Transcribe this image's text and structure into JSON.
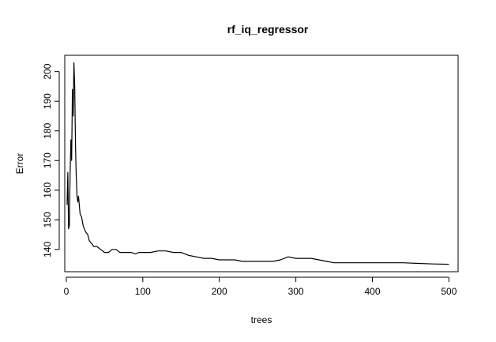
{
  "chart_data": {
    "type": "line",
    "title": "rf_iq_regressor",
    "xlabel": "trees",
    "ylabel": "Error",
    "xlim": [
      -2,
      512
    ],
    "ylim": [
      132.5,
      205.5
    ],
    "xticks": [
      0,
      100,
      200,
      300,
      400,
      500
    ],
    "yticks": [
      140,
      150,
      160,
      170,
      180,
      190,
      200
    ],
    "grid": false,
    "series": [
      {
        "color": "#000000",
        "x": [
          1,
          2,
          3,
          4,
          5,
          6,
          7,
          8,
          9,
          10,
          11,
          12,
          13,
          14,
          15,
          16,
          18,
          20,
          22,
          25,
          28,
          30,
          33,
          36,
          40,
          45,
          50,
          55,
          60,
          65,
          70,
          75,
          80,
          85,
          90,
          95,
          100,
          110,
          120,
          130,
          140,
          150,
          160,
          170,
          180,
          190,
          200,
          210,
          220,
          230,
          240,
          250,
          260,
          270,
          280,
          290,
          300,
          310,
          320,
          330,
          340,
          350,
          360,
          370,
          380,
          390,
          400,
          420,
          440,
          460,
          480,
          500
        ],
        "values": [
          155,
          166,
          147,
          148,
          166,
          177,
          170,
          194,
          185,
          203,
          195,
          175,
          165,
          158,
          156,
          158,
          152,
          151,
          148,
          146,
          145,
          143,
          142,
          141,
          141,
          140,
          139,
          139,
          140,
          140,
          139,
          139,
          139,
          139,
          138.5,
          139,
          139,
          139,
          139.5,
          139.5,
          139,
          139,
          138,
          137.5,
          137,
          137,
          136.5,
          136.5,
          136.5,
          136,
          136,
          136,
          136,
          136,
          136.5,
          137.5,
          137,
          137,
          137,
          136.5,
          136,
          135.5,
          135.5,
          135.5,
          135.5,
          135.5,
          135.5,
          135.5,
          135.5,
          135.3,
          135.1,
          135
        ]
      }
    ]
  }
}
